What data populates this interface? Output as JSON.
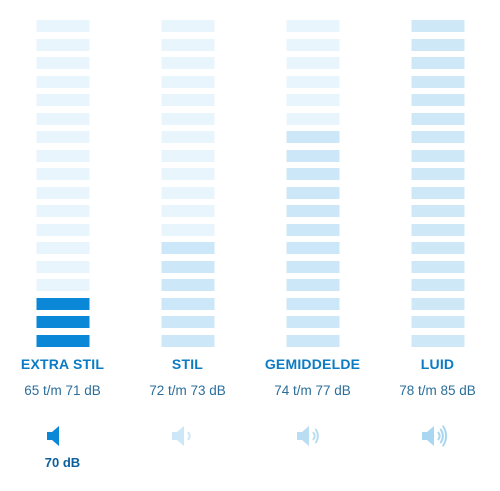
{
  "levels": [
    {
      "label": "EXTRA STIL",
      "range": "65 t/m 71 dB",
      "label_color": "#0a7bc4",
      "icon": "speaker-0-waves-icon",
      "icon_color": "#0a87d6",
      "segments": [
        "c0",
        "c0",
        "c0",
        "c0",
        "c0",
        "c0",
        "c0",
        "c0",
        "c0",
        "c0",
        "c0",
        "c0",
        "c0",
        "c0",
        "c0",
        "c2",
        "c2",
        "c2"
      ]
    },
    {
      "label": "STIL",
      "range": "72 t/m 73 dB",
      "label_color": "#0a7bc4",
      "icon": "speaker-1-wave-icon",
      "icon_color": "#cce7f7",
      "segments": [
        "c0",
        "c0",
        "c0",
        "c0",
        "c0",
        "c0",
        "c0",
        "c0",
        "c0",
        "c0",
        "c0",
        "c0",
        "c1",
        "c1",
        "c1",
        "c1",
        "c1",
        "c1"
      ]
    },
    {
      "label": "GEMIDDELDE",
      "range": "74 t/m 77 dB",
      "label_color": "#0a7bc4",
      "icon": "speaker-2-waves-icon",
      "icon_color": "#b9ddf3",
      "segments": [
        "c0",
        "c0",
        "c0",
        "c0",
        "c0",
        "c0",
        "c1",
        "c1",
        "c1",
        "c1",
        "c1",
        "c1",
        "c1",
        "c1",
        "c1",
        "c1",
        "c1",
        "c1"
      ]
    },
    {
      "label": "LUID",
      "range": "78 t/m 85 dB",
      "label_color": "#0a7bc4",
      "icon": "speaker-3-waves-icon",
      "icon_color": "#a9d6f1",
      "segments": [
        "c3",
        "c3",
        "c3",
        "c3",
        "c3",
        "c3",
        "c3",
        "c3",
        "c3",
        "c3",
        "c3",
        "c3",
        "c3",
        "c3",
        "c3",
        "c3",
        "c3",
        "c3"
      ]
    }
  ],
  "current_value": "70 dB",
  "current_level_index": 0
}
